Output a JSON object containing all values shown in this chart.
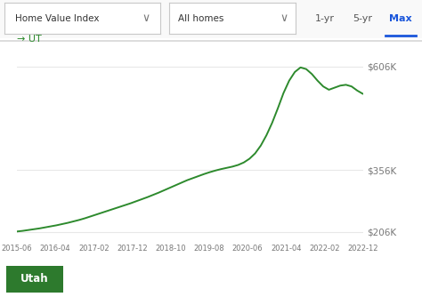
{
  "line_color": "#2d8a2d",
  "background_color": "#ffffff",
  "x_tick_labels": [
    "2015-06",
    "2016-04",
    "2017-02",
    "2017-12",
    "2018-10",
    "2019-08",
    "2020-06",
    "2021-04",
    "2022-02",
    "2022-12"
  ],
  "y_tick_labels": [
    "$206K",
    "$356K",
    "$606K"
  ],
  "y_tick_values": [
    206000,
    356000,
    606000
  ],
  "ylim": [
    185000,
    645000
  ],
  "legend_label": "UT",
  "legend_color": "#2d8a2d",
  "dropdown1": "Home Value Index",
  "dropdown2": "All homes",
  "btn_labels": [
    "1-yr",
    "5-yr",
    "Max"
  ],
  "btn_active": "Max",
  "utah_btn_color": "#2d7a2d",
  "utah_btn_text": "Utah",
  "data_y": [
    207000,
    208500,
    210500,
    212500,
    214500,
    217000,
    219500,
    222000,
    225000,
    228000,
    231500,
    235000,
    239000,
    243500,
    248000,
    252500,
    257000,
    261500,
    266000,
    270500,
    275000,
    280000,
    285000,
    290000,
    295500,
    301000,
    307000,
    313000,
    319000,
    325000,
    331000,
    336000,
    341000,
    346000,
    350500,
    354500,
    358000,
    361000,
    364000,
    368000,
    374000,
    383000,
    396000,
    415000,
    440000,
    470000,
    505000,
    542000,
    572000,
    593000,
    604000,
    600000,
    588000,
    572000,
    558000,
    550000,
    555000,
    560000,
    562000,
    558000,
    548000,
    540000
  ]
}
